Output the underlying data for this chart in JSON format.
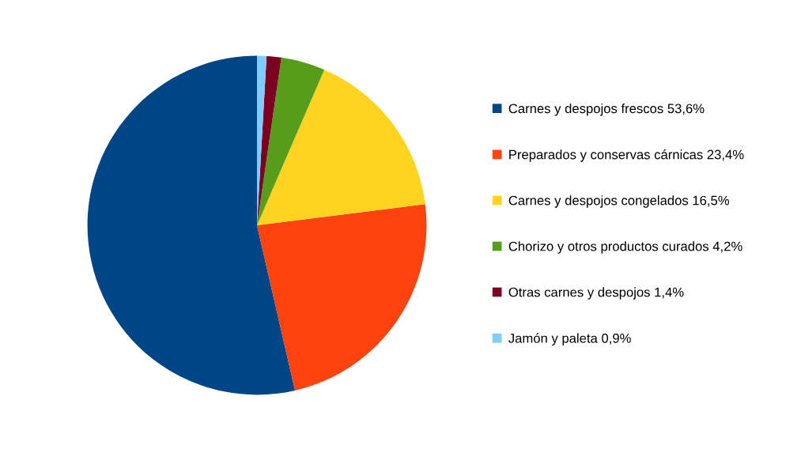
{
  "chart_data": {
    "type": "pie",
    "categories": [
      "Carnes y despojos frescos",
      "Preparados y conservas cárnicas",
      "Carnes y despojos congelados",
      "Chorizo y otros productos curados",
      "Otras carnes y despojos",
      "Jamón y paleta"
    ],
    "values": [
      53.6,
      23.4,
      16.5,
      4.2,
      1.4,
      0.9
    ],
    "value_labels": [
      "53,6%",
      "23,4%",
      "16,5%",
      "4,2%",
      "1,4%",
      "0,9%"
    ],
    "colors": [
      "#004586",
      "#ff420e",
      "#ffd320",
      "#579d1c",
      "#7e0021",
      "#83caff"
    ],
    "legend": "right"
  }
}
